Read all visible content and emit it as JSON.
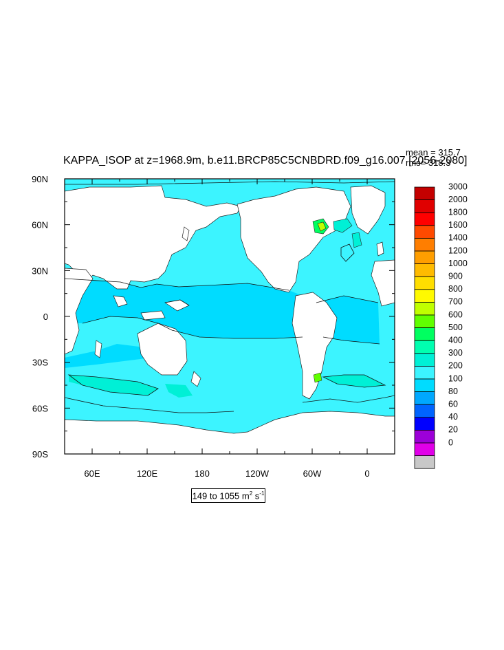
{
  "title": "KAPPA_ISOP at z=1968.9m, b.e11.BRCP85C5CNBDRD.f09_g16.007 [2056-2080]",
  "stats": {
    "mean": "mean = 315.7",
    "rms": "rms= 318.3"
  },
  "range": {
    "prefix": "149 to 1055 m",
    "exp1": "2",
    "mid": " s",
    "exp2": "-1"
  },
  "colors": {
    "ocean_base": "#3cf4ff",
    "ocean_300_400": "#00dcff",
    "ocean_400_500": "#00f0d6",
    "land": "#ffffff"
  },
  "chart_data": {
    "type": "heatmap",
    "projection": "cylindrical equidistant",
    "xlabels": [
      "60E",
      "120E",
      "180",
      "120W",
      "60W",
      "0"
    ],
    "ylabels": [
      "90N",
      "60N",
      "30N",
      "0",
      "30S",
      "60S",
      "90S"
    ],
    "xlim": [
      30,
      390
    ],
    "ylim": [
      -90,
      90
    ],
    "colorbar": {
      "levels": [
        "3000",
        "2000",
        "1800",
        "1600",
        "1400",
        "1200",
        "1000",
        "900",
        "800",
        "700",
        "600",
        "500",
        "400",
        "300",
        "200",
        "100",
        "80",
        "60",
        "40",
        "20",
        "0"
      ],
      "colors": [
        "#c40000",
        "#e00000",
        "#ff0000",
        "#ff4a00",
        "#ff7e00",
        "#ff9e00",
        "#ffbb00",
        "#ffde00",
        "#fffa00",
        "#c0ff00",
        "#60ff00",
        "#00ff60",
        "#00ffb0",
        "#00f0d6",
        "#3cf4ff",
        "#00dcff",
        "#00a8ff",
        "#0064ff",
        "#0000ff",
        "#9c00d8",
        "#e000e8",
        "#c8c8c8"
      ]
    },
    "mean": 315.7,
    "rms": 318.3,
    "min": 149,
    "max": 1055,
    "units": "m2 s-1"
  }
}
